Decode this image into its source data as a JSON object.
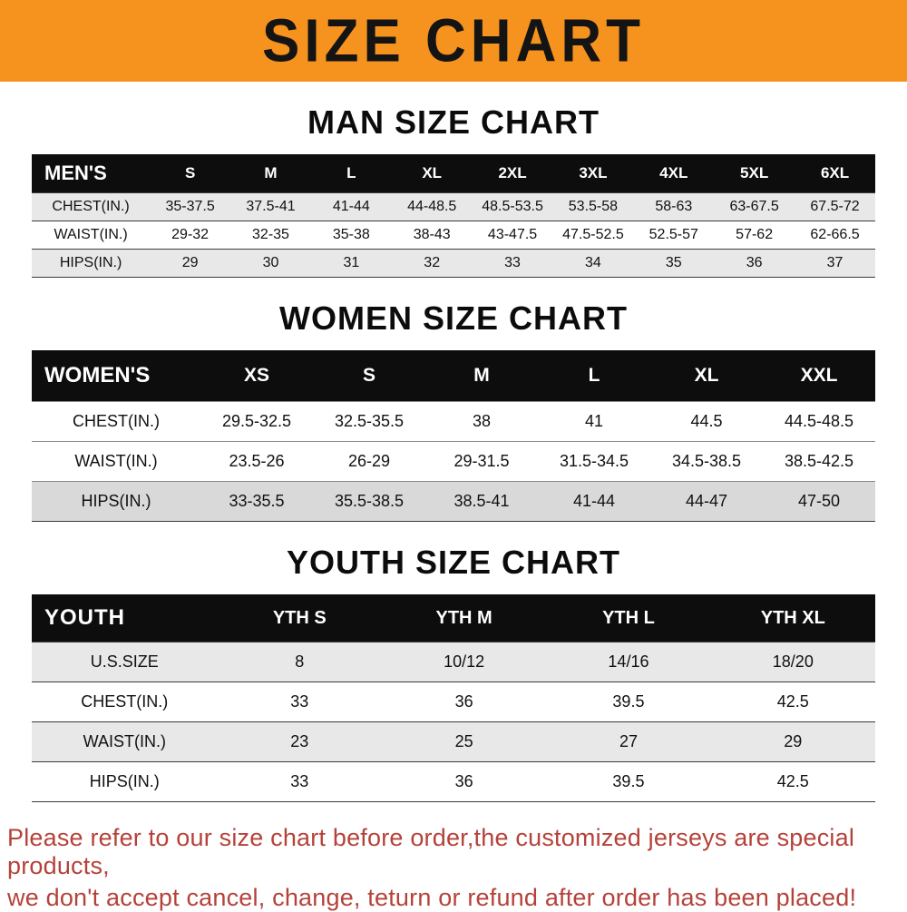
{
  "banner": {
    "title": "SIZE CHART"
  },
  "colors": {
    "banner_bg": "#f6921e",
    "table_header_bg": "#0d0d0d",
    "row_shade": "#e8e8e8",
    "notice_text": "#b5423a"
  },
  "sections": {
    "men": {
      "heading": "MAN SIZE CHART",
      "table": {
        "name": "MEN'S",
        "columns": [
          "S",
          "M",
          "L",
          "XL",
          "2XL",
          "3XL",
          "4XL",
          "5XL",
          "6XL"
        ],
        "rows": [
          {
            "label": "CHEST(IN.)",
            "values": [
              "35-37.5",
              "37.5-41",
              "41-44",
              "44-48.5",
              "48.5-53.5",
              "53.5-58",
              "58-63",
              "63-67.5",
              "67.5-72"
            ]
          },
          {
            "label": "WAIST(IN.)",
            "values": [
              "29-32",
              "32-35",
              "35-38",
              "38-43",
              "43-47.5",
              "47.5-52.5",
              "52.5-57",
              "57-62",
              "62-66.5"
            ]
          },
          {
            "label": "HIPS(IN.)",
            "values": [
              "29",
              "30",
              "31",
              "32",
              "33",
              "34",
              "35",
              "36",
              "37"
            ]
          }
        ]
      }
    },
    "women": {
      "heading": "WOMEN SIZE CHART",
      "table": {
        "name": "WOMEN'S",
        "columns": [
          "XS",
          "S",
          "M",
          "L",
          "XL",
          "XXL"
        ],
        "rows": [
          {
            "label": "CHEST(IN.)",
            "values": [
              "29.5-32.5",
              "32.5-35.5",
              "38",
              "41",
              "44.5",
              "44.5-48.5"
            ]
          },
          {
            "label": "WAIST(IN.)",
            "values": [
              "23.5-26",
              "26-29",
              "29-31.5",
              "31.5-34.5",
              "34.5-38.5",
              "38.5-42.5"
            ]
          },
          {
            "label": "HIPS(IN.)",
            "values": [
              "33-35.5",
              "35.5-38.5",
              "38.5-41",
              "41-44",
              "44-47",
              "47-50"
            ]
          }
        ]
      }
    },
    "youth": {
      "heading": "YOUTH SIZE CHART",
      "table": {
        "name": "YOUTH",
        "columns": [
          "YTH S",
          "YTH M",
          "YTH L",
          "YTH XL"
        ],
        "rows": [
          {
            "label": "U.S.SIZE",
            "values": [
              "8",
              "10/12",
              "14/16",
              "18/20"
            ]
          },
          {
            "label": "CHEST(IN.)",
            "values": [
              "33",
              "36",
              "39.5",
              "42.5"
            ]
          },
          {
            "label": "WAIST(IN.)",
            "values": [
              "23",
              "25",
              "27",
              "29"
            ]
          },
          {
            "label": "HIPS(IN.)",
            "values": [
              "33",
              "36",
              "39.5",
              "42.5"
            ]
          }
        ]
      }
    }
  },
  "footer": {
    "lines": [
      "Please refer to our size chart before order,the customized jerseys are special products,",
      "we don't accept cancel, change, teturn or refund after order has been placed!"
    ]
  }
}
